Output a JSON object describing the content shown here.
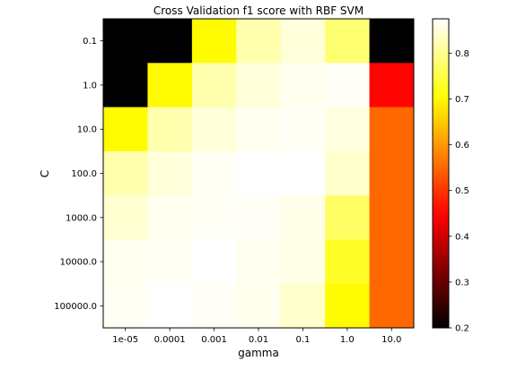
{
  "chart_data": {
    "type": "heatmap",
    "title": "Cross Validation f1 score with RBF SVM",
    "xlabel": "gamma",
    "ylabel": "C",
    "x_categories": [
      "1e-05",
      "0.0001",
      "0.001",
      "0.01",
      "0.1",
      "1.0",
      "10.0"
    ],
    "y_categories": [
      "0.1",
      "1.0",
      "10.0",
      "100.0",
      "1000.0",
      "10000.0",
      "100000.0"
    ],
    "values": [
      [
        0.2,
        0.2,
        0.7,
        0.82,
        0.85,
        0.78,
        0.2
      ],
      [
        0.2,
        0.7,
        0.82,
        0.85,
        0.865,
        0.87,
        0.45
      ],
      [
        0.7,
        0.82,
        0.85,
        0.865,
        0.868,
        0.855,
        0.55
      ],
      [
        0.82,
        0.85,
        0.868,
        0.875,
        0.875,
        0.84,
        0.55
      ],
      [
        0.845,
        0.865,
        0.868,
        0.87,
        0.86,
        0.77,
        0.55
      ],
      [
        0.865,
        0.868,
        0.875,
        0.865,
        0.86,
        0.73,
        0.55
      ],
      [
        0.868,
        0.875,
        0.87,
        0.863,
        0.84,
        0.7,
        0.55
      ]
    ],
    "colormap": "hot",
    "colorbar": {
      "vmin": 0.2,
      "vmax": 0.875,
      "ticks": [
        "0.2",
        "0.3",
        "0.4",
        "0.5",
        "0.6",
        "0.7",
        "0.8"
      ]
    },
    "grid": false
  }
}
